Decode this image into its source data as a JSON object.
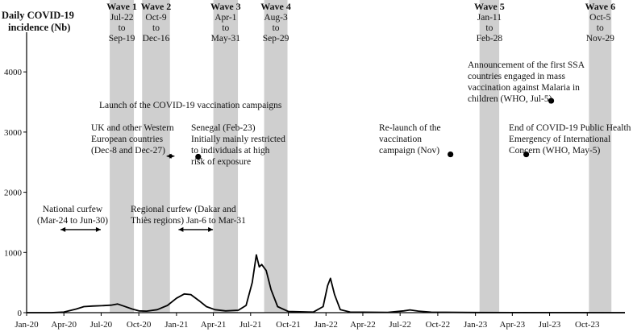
{
  "chart_data": {
    "type": "line",
    "ylabel_lines": [
      "Daily COVID-19",
      "incidence (Nb)"
    ],
    "xlabel": "",
    "ylim": [
      0,
      4500
    ],
    "y_ticks": [
      0,
      1000,
      2000,
      3000,
      4000
    ],
    "y_tick_labels": [
      "0",
      "1000",
      "2000",
      "3000",
      "4000"
    ],
    "x_range": [
      "2020-01-01",
      "2024-01-01"
    ],
    "x_ticks": [
      {
        "date": "2020-01-01",
        "label": "Jan-20"
      },
      {
        "date": "2020-04-01",
        "label": "Apr-20"
      },
      {
        "date": "2020-07-01",
        "label": "Jul-20"
      },
      {
        "date": "2020-10-01",
        "label": "Oct-20"
      },
      {
        "date": "2021-01-01",
        "label": "Jan-21"
      },
      {
        "date": "2021-04-01",
        "label": "Apr-21"
      },
      {
        "date": "2021-07-01",
        "label": "Jul-21"
      },
      {
        "date": "2021-10-01",
        "label": "Oct-21"
      },
      {
        "date": "2022-01-01",
        "label": "Jan-22"
      },
      {
        "date": "2022-04-01",
        "label": "Apr-22"
      },
      {
        "date": "2022-07-01",
        "label": "Jul-22"
      },
      {
        "date": "2022-10-01",
        "label": "Oct-22"
      },
      {
        "date": "2023-01-01",
        "label": "Jan-23"
      },
      {
        "date": "2023-04-01",
        "label": "Apr-23"
      },
      {
        "date": "2023-07-01",
        "label": "Jul-23"
      },
      {
        "date": "2023-10-01",
        "label": "Oct-23"
      }
    ],
    "waves": [
      {
        "title": "Wave 1",
        "from_label": "Jul-22",
        "to": "to",
        "to_label": "Sep-19",
        "start": "2020-07-22",
        "end": "2020-09-19"
      },
      {
        "title": "Wave 2",
        "from_label": "Oct-9",
        "to": "to",
        "to_label": "Dec-16",
        "start": "2020-10-09",
        "end": "2020-12-16"
      },
      {
        "title": "Wave 3",
        "from_label": "Apr-1",
        "to": "to",
        "to_label": "May-31",
        "start": "2021-04-01",
        "end": "2021-05-31"
      },
      {
        "title": "Wave 4",
        "from_label": "Aug-3",
        "to": "to",
        "to_label": "Sep-29",
        "start": "2021-08-03",
        "end": "2021-09-29"
      },
      {
        "title": "Wave 5",
        "from_label": "Jan-11",
        "to": "to",
        "to_label": "Feb-28",
        "start": "2023-01-11",
        "end": "2023-02-28"
      },
      {
        "title": "Wave 6",
        "from_label": "Oct-5",
        "to": "to",
        "to_label": "Nov-29",
        "start": "2023-10-05",
        "end": "2023-11-29"
      }
    ],
    "series": [
      {
        "values": [
          {
            "x": "2020-01-01",
            "y": 0
          },
          {
            "x": "2020-03-01",
            "y": 0
          },
          {
            "x": "2020-04-01",
            "y": 10
          },
          {
            "x": "2020-05-01",
            "y": 60
          },
          {
            "x": "2020-05-20",
            "y": 100
          },
          {
            "x": "2020-06-10",
            "y": 110
          },
          {
            "x": "2020-07-01",
            "y": 115
          },
          {
            "x": "2020-07-25",
            "y": 125
          },
          {
            "x": "2020-08-10",
            "y": 145
          },
          {
            "x": "2020-08-25",
            "y": 110
          },
          {
            "x": "2020-09-15",
            "y": 60
          },
          {
            "x": "2020-10-01",
            "y": 30
          },
          {
            "x": "2020-10-20",
            "y": 25
          },
          {
            "x": "2020-11-15",
            "y": 50
          },
          {
            "x": "2020-12-10",
            "y": 120
          },
          {
            "x": "2021-01-01",
            "y": 240
          },
          {
            "x": "2021-01-20",
            "y": 310
          },
          {
            "x": "2021-02-05",
            "y": 300
          },
          {
            "x": "2021-02-25",
            "y": 200
          },
          {
            "x": "2021-03-15",
            "y": 100
          },
          {
            "x": "2021-04-05",
            "y": 50
          },
          {
            "x": "2021-05-01",
            "y": 30
          },
          {
            "x": "2021-06-01",
            "y": 40
          },
          {
            "x": "2021-06-20",
            "y": 120
          },
          {
            "x": "2021-07-05",
            "y": 500
          },
          {
            "x": "2021-07-15",
            "y": 960
          },
          {
            "x": "2021-07-22",
            "y": 760
          },
          {
            "x": "2021-07-28",
            "y": 800
          },
          {
            "x": "2021-08-08",
            "y": 700
          },
          {
            "x": "2021-08-20",
            "y": 380
          },
          {
            "x": "2021-09-05",
            "y": 100
          },
          {
            "x": "2021-10-01",
            "y": 20
          },
          {
            "x": "2021-12-01",
            "y": 10
          },
          {
            "x": "2021-12-25",
            "y": 100
          },
          {
            "x": "2022-01-05",
            "y": 450
          },
          {
            "x": "2022-01-12",
            "y": 570
          },
          {
            "x": "2022-01-22",
            "y": 300
          },
          {
            "x": "2022-02-05",
            "y": 50
          },
          {
            "x": "2022-03-01",
            "y": 10
          },
          {
            "x": "2022-06-01",
            "y": 5
          },
          {
            "x": "2022-07-10",
            "y": 30
          },
          {
            "x": "2022-07-25",
            "y": 45
          },
          {
            "x": "2022-08-15",
            "y": 25
          },
          {
            "x": "2022-09-15",
            "y": 8
          },
          {
            "x": "2023-01-01",
            "y": 3
          },
          {
            "x": "2024-01-01",
            "y": 0
          }
        ]
      }
    ],
    "annotations": [
      {
        "key": "curfew_national",
        "lines": [
          "National curfew",
          "(Mar-24 to Jun-30)"
        ]
      },
      {
        "key": "curfew_regional",
        "lines": [
          "Regional curfew (Dakar and",
          "Thiès regions) Jan-6 to Mar-31"
        ]
      },
      {
        "key": "uk",
        "lines": [
          "UK and other Western",
          "European countries",
          "(Dec-8 and Dec-27)"
        ]
      },
      {
        "key": "launch",
        "lines": [
          "Launch of the COVID-19 vaccination campaigns"
        ]
      },
      {
        "key": "senegal",
        "lines": [
          "Senegal (Feb-23)",
          "Initially mainly restricted",
          "to individuals at high",
          "risk of exposure"
        ]
      },
      {
        "key": "relaunch",
        "lines": [
          "Re-launch of the",
          "vaccination",
          "campaign (Nov)"
        ]
      },
      {
        "key": "malaria",
        "lines": [
          "Announcement of the first SSA",
          "countries engaged in mass",
          "vaccination against Malaria in",
          "children (WHO, Jul-5)"
        ]
      },
      {
        "key": "pheic",
        "lines": [
          "End of COVID-19 Public Health",
          "Emergency of International",
          "Concern (WHO, May-5)"
        ]
      }
    ],
    "events": [
      {
        "key": "senegal",
        "date": "2021-02-23",
        "y": 2590
      },
      {
        "key": "relaunch",
        "date": "2022-11-01",
        "y": 2630
      },
      {
        "key": "pheic",
        "date": "2023-05-05",
        "y": 2630
      },
      {
        "key": "malaria",
        "date": "2023-07-05",
        "y": 3520
      }
    ],
    "arrows": [
      {
        "key": "curfew_national",
        "start": "2020-03-24",
        "end": "2020-06-30",
        "y": 1380
      },
      {
        "key": "uk",
        "start": "2020-12-08",
        "end": "2020-12-27",
        "y": 2600
      },
      {
        "key": "curfew_regional",
        "start": "2021-01-06",
        "end": "2021-03-31",
        "y": 1380
      }
    ],
    "grid": false,
    "legend": "none"
  }
}
